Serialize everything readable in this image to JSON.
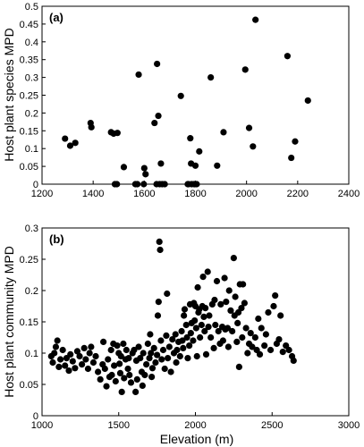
{
  "chart_data": [
    {
      "type": "scatter",
      "panel_label": "(a)",
      "xlabel": "",
      "ylabel": "Host plant species MPD",
      "xlim": [
        1200,
        2400
      ],
      "ylim": [
        0,
        0.5
      ],
      "xticks": [
        1200,
        1400,
        1600,
        1800,
        2000,
        2200,
        2400
      ],
      "yticks": [
        0,
        0.05,
        0.1,
        0.15,
        0.2,
        0.25,
        0.3,
        0.35,
        0.4,
        0.45,
        0.5
      ],
      "xtick_labels": [
        "1200",
        "1400",
        "1600",
        "1800",
        "2000",
        "2200",
        "2400"
      ],
      "ytick_labels": [
        "0",
        "0.05",
        "0.1",
        "0.15",
        "0.2",
        "0.25",
        "0.3",
        "0.35",
        "0.4",
        "0.45",
        "0.5"
      ],
      "marker_color": "#000000",
      "points": [
        [
          1290,
          0.128
        ],
        [
          1310,
          0.108
        ],
        [
          1330,
          0.116
        ],
        [
          1390,
          0.172
        ],
        [
          1393,
          0.16
        ],
        [
          1470,
          0.146
        ],
        [
          1480,
          0.142
        ],
        [
          1495,
          0.144
        ],
        [
          1485,
          0.0
        ],
        [
          1493,
          0.0
        ],
        [
          1520,
          0.048
        ],
        [
          1565,
          0.0
        ],
        [
          1573,
          0.0
        ],
        [
          1578,
          0.308
        ],
        [
          1598,
          0.0
        ],
        [
          1600,
          0.045
        ],
        [
          1605,
          0.028
        ],
        [
          1640,
          0.172
        ],
        [
          1648,
          0.0
        ],
        [
          1650,
          0.338
        ],
        [
          1655,
          0.192
        ],
        [
          1660,
          0.0
        ],
        [
          1665,
          0.058
        ],
        [
          1670,
          0.0
        ],
        [
          1680,
          0.0
        ],
        [
          1743,
          0.248
        ],
        [
          1770,
          0.0
        ],
        [
          1773,
          0.0
        ],
        [
          1780,
          0.129
        ],
        [
          1783,
          0.058
        ],
        [
          1785,
          0.0
        ],
        [
          1795,
          0.0
        ],
        [
          1798,
          0.0
        ],
        [
          1800,
          0.052
        ],
        [
          1805,
          0.0
        ],
        [
          1815,
          0.092
        ],
        [
          1860,
          0.3
        ],
        [
          1885,
          0.052
        ],
        [
          1910,
          0.146
        ],
        [
          1995,
          0.322
        ],
        [
          2010,
          0.158
        ],
        [
          2025,
          0.106
        ],
        [
          2035,
          0.462
        ],
        [
          2160,
          0.36
        ],
        [
          2175,
          0.074
        ],
        [
          2190,
          0.12
        ],
        [
          2240,
          0.235
        ]
      ]
    },
    {
      "type": "scatter",
      "panel_label": "(b)",
      "xlabel": "Elevation (m)",
      "ylabel": "Host plant community MPD",
      "xlim": [
        1000,
        3000
      ],
      "ylim": [
        0,
        0.3
      ],
      "xticks": [
        1000,
        1500,
        2000,
        2500,
        3000
      ],
      "yticks": [
        0,
        0.05,
        0.1,
        0.15,
        0.2,
        0.25,
        0.3
      ],
      "xtick_labels": [
        "1000",
        "1500",
        "2000",
        "2500",
        "3000"
      ],
      "ytick_labels": [
        "0",
        "0.05",
        "0.1",
        "0.15",
        "0.2",
        "0.25",
        "0.3"
      ],
      "marker_color": "#000000",
      "points": [
        [
          1060,
          0.095
        ],
        [
          1070,
          0.085
        ],
        [
          1080,
          0.1
        ],
        [
          1090,
          0.11
        ],
        [
          1100,
          0.12
        ],
        [
          1110,
          0.078
        ],
        [
          1120,
          0.09
        ],
        [
          1135,
          0.105
        ],
        [
          1150,
          0.08
        ],
        [
          1160,
          0.092
        ],
        [
          1175,
          0.072
        ],
        [
          1185,
          0.098
        ],
        [
          1200,
          0.087
        ],
        [
          1215,
          0.076
        ],
        [
          1230,
          0.103
        ],
        [
          1245,
          0.095
        ],
        [
          1260,
          0.082
        ],
        [
          1275,
          0.108
        ],
        [
          1285,
          0.09
        ],
        [
          1300,
          0.075
        ],
        [
          1310,
          0.1
        ],
        [
          1320,
          0.11
        ],
        [
          1335,
          0.085
        ],
        [
          1350,
          0.095
        ],
        [
          1365,
          0.07
        ],
        [
          1380,
          0.058
        ],
        [
          1395,
          0.082
        ],
        [
          1400,
          0.118
        ],
        [
          1410,
          0.075
        ],
        [
          1420,
          0.047
        ],
        [
          1430,
          0.09
        ],
        [
          1440,
          0.062
        ],
        [
          1450,
          0.105
        ],
        [
          1455,
          0.065
        ],
        [
          1465,
          0.115
        ],
        [
          1470,
          0.08
        ],
        [
          1480,
          0.055
        ],
        [
          1490,
          0.112
        ],
        [
          1500,
          0.1
        ],
        [
          1505,
          0.083
        ],
        [
          1510,
          0.068
        ],
        [
          1515,
          0.095
        ],
        [
          1520,
          0.038
        ],
        [
          1530,
          0.115
        ],
        [
          1535,
          0.06
        ],
        [
          1545,
          0.09
        ],
        [
          1550,
          0.105
        ],
        [
          1560,
          0.075
        ],
        [
          1565,
          0.092
        ],
        [
          1570,
          0.065
        ],
        [
          1580,
          0.053
        ],
        [
          1590,
          0.1
        ],
        [
          1600,
          0.105
        ],
        [
          1610,
          0.038
        ],
        [
          1615,
          0.088
        ],
        [
          1620,
          0.058
        ],
        [
          1630,
          0.11
        ],
        [
          1640,
          0.092
        ],
        [
          1650,
          0.07
        ],
        [
          1655,
          0.048
        ],
        [
          1660,
          0.1
        ],
        [
          1670,
          0.065
        ],
        [
          1680,
          0.082
        ],
        [
          1690,
          0.115
        ],
        [
          1700,
          0.092
        ],
        [
          1705,
          0.13
        ],
        [
          1710,
          0.1
        ],
        [
          1715,
          0.062
        ],
        [
          1720,
          0.076
        ],
        [
          1730,
          0.108
        ],
        [
          1740,
          0.085
        ],
        [
          1750,
          0.097
        ],
        [
          1755,
          0.16
        ],
        [
          1760,
          0.182
        ],
        [
          1765,
          0.278
        ],
        [
          1770,
          0.265
        ],
        [
          1775,
          0.12
        ],
        [
          1780,
          0.09
        ],
        [
          1790,
          0.105
        ],
        [
          1800,
          0.075
        ],
        [
          1810,
          0.128
        ],
        [
          1815,
          0.195
        ],
        [
          1820,
          0.092
        ],
        [
          1830,
          0.11
        ],
        [
          1840,
          0.07
        ],
        [
          1850,
          0.122
        ],
        [
          1860,
          0.1
        ],
        [
          1870,
          0.13
        ],
        [
          1875,
          0.085
        ],
        [
          1880,
          0.105
        ],
        [
          1890,
          0.118
        ],
        [
          1900,
          0.095
        ],
        [
          1910,
          0.135
        ],
        [
          1915,
          0.12
        ],
        [
          1920,
          0.108
        ],
        [
          1925,
          0.16
        ],
        [
          1930,
          0.17
        ],
        [
          1940,
          0.145
        ],
        [
          1945,
          0.125
        ],
        [
          1950,
          0.092
        ],
        [
          1960,
          0.112
        ],
        [
          1965,
          0.178
        ],
        [
          1970,
          0.132
        ],
        [
          1975,
          0.148
        ],
        [
          1985,
          0.12
        ],
        [
          1990,
          0.18
        ],
        [
          1995,
          0.152
        ],
        [
          2000,
          0.175
        ],
        [
          2005,
          0.14
        ],
        [
          2010,
          0.095
        ],
        [
          2015,
          0.205
        ],
        [
          2020,
          0.165
        ],
        [
          2025,
          0.17
        ],
        [
          2030,
          0.125
        ],
        [
          2040,
          0.145
        ],
        [
          2045,
          0.175
        ],
        [
          2050,
          0.222
        ],
        [
          2055,
          0.158
        ],
        [
          2060,
          0.135
        ],
        [
          2065,
          0.172
        ],
        [
          2070,
          0.098
        ],
        [
          2080,
          0.23
        ],
        [
          2085,
          0.142
        ],
        [
          2090,
          0.16
        ],
        [
          2100,
          0.125
        ],
        [
          2110,
          0.178
        ],
        [
          2120,
          0.108
        ],
        [
          2125,
          0.185
        ],
        [
          2130,
          0.145
        ],
        [
          2140,
          0.215
        ],
        [
          2150,
          0.135
        ],
        [
          2160,
          0.115
        ],
        [
          2165,
          0.178
        ],
        [
          2175,
          0.142
        ],
        [
          2180,
          0.12
        ],
        [
          2190,
          0.22
        ],
        [
          2195,
          0.138
        ],
        [
          2200,
          0.182
        ],
        [
          2210,
          0.14
        ],
        [
          2215,
          0.11
        ],
        [
          2220,
          0.2
        ],
        [
          2230,
          0.168
        ],
        [
          2240,
          0.135
        ],
        [
          2250,
          0.252
        ],
        [
          2255,
          0.16
        ],
        [
          2260,
          0.19
        ],
        [
          2270,
          0.118
        ],
        [
          2275,
          0.148
        ],
        [
          2280,
          0.165
        ],
        [
          2285,
          0.078
        ],
        [
          2290,
          0.21
        ],
        [
          2300,
          0.172
        ],
        [
          2305,
          0.125
        ],
        [
          2310,
          0.21
        ],
        [
          2320,
          0.18
        ],
        [
          2330,
          0.14
        ],
        [
          2340,
          0.1
        ],
        [
          2350,
          0.115
        ],
        [
          2360,
          0.132
        ],
        [
          2370,
          0.11
        ],
        [
          2390,
          0.125
        ],
        [
          2400,
          0.105
        ],
        [
          2410,
          0.155
        ],
        [
          2420,
          0.098
        ],
        [
          2430,
          0.14
        ],
        [
          2450,
          0.112
        ],
        [
          2460,
          0.13
        ],
        [
          2475,
          0.165
        ],
        [
          2490,
          0.105
        ],
        [
          2510,
          0.175
        ],
        [
          2520,
          0.192
        ],
        [
          2530,
          0.115
        ],
        [
          2545,
          0.122
        ],
        [
          2555,
          0.16
        ],
        [
          2570,
          0.102
        ],
        [
          2590,
          0.112
        ],
        [
          2610,
          0.105
        ],
        [
          2630,
          0.095
        ],
        [
          2640,
          0.088
        ]
      ]
    }
  ]
}
